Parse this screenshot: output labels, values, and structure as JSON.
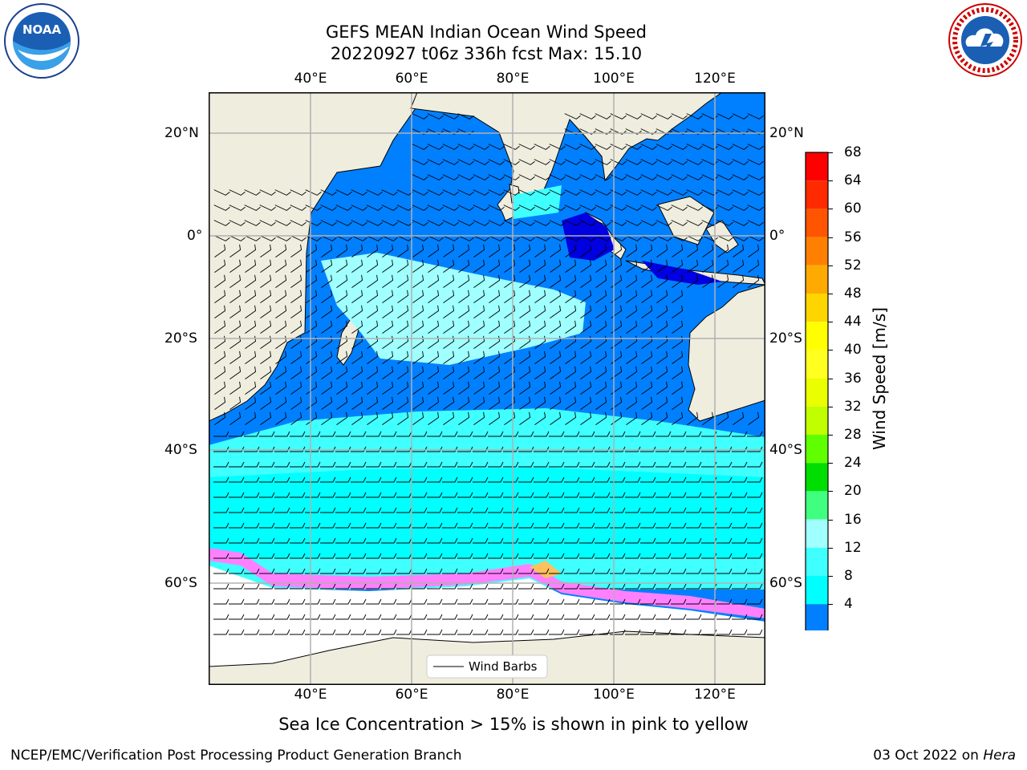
{
  "title": {
    "line1": "GEFS MEAN Indian Ocean Wind Speed",
    "line2": "20220927 t06z 336h fcst   Max: 15.10"
  },
  "map": {
    "lon_ticks": [
      "40°E",
      "60°E",
      "80°E",
      "100°E",
      "120°E"
    ],
    "lat_ticks_left": [
      "20°N",
      "0°",
      "20°S",
      "40°S",
      "60°S"
    ],
    "lat_ticks_right": [
      "20°N",
      "0°",
      "20°S",
      "40°S",
      "60°S"
    ],
    "legend_label": "Wind Barbs",
    "colors": {
      "land": "#efedde",
      "speed_4_8": "#0080ff",
      "speed_below_4": "#0000e0",
      "speed_8_12": "#00ffff",
      "speed_12_16": "#40ffff",
      "speed_16_20": "#a0ffff",
      "ice": "#ff80ff",
      "grid": "#b0b0b0"
    }
  },
  "colorbar": {
    "label": "Wind Speed [m/s]",
    "ticks": [
      "68",
      "64",
      "60",
      "56",
      "52",
      "48",
      "44",
      "40",
      "36",
      "32",
      "28",
      "24",
      "20",
      "16",
      "12",
      "8",
      "4"
    ],
    "colors": [
      "#ff0000",
      "#ff2a00",
      "#ff5500",
      "#ff8000",
      "#ffaa00",
      "#ffd500",
      "#ffff00",
      "#ffff20",
      "#eaff00",
      "#c0ff00",
      "#60ff00",
      "#00dd00",
      "#40ff80",
      "#a0ffff",
      "#40ffff",
      "#00ffff",
      "#0080ff"
    ],
    "extend_color": "#0000ff"
  },
  "caption": "Sea Ice Concentration > 15% is shown in pink to yellow",
  "footer": {
    "left": "NCEP/EMC/Verification Post Processing Product Generation Branch",
    "right_date": "03 Oct 2022 on ",
    "right_machine": "Hera"
  },
  "logos": {
    "noaa_text": "NOAA",
    "nws_text": "NATIONAL WEATHER SERVICE"
  }
}
